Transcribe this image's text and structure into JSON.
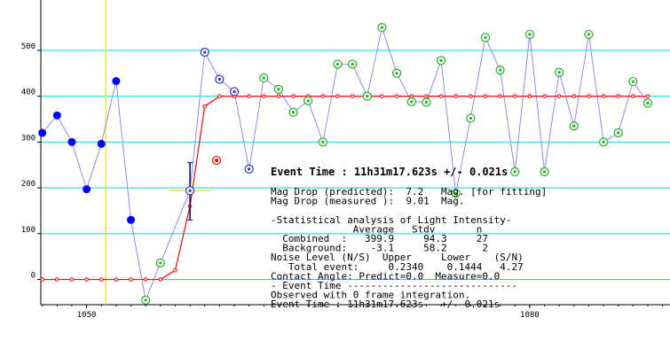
{
  "chart_data": {
    "type": "scatter",
    "title": "",
    "xlabel": "",
    "ylabel": "",
    "xlim": [
      1046.9,
      1089.5
    ],
    "ylim": [
      -55,
      610
    ],
    "x_ticks": [
      1050,
      1080
    ],
    "y_ticks": [
      0,
      100,
      200,
      300,
      400,
      500
    ],
    "grid": "horizontal",
    "event_marker_x": 1051.3,
    "series": [
      {
        "style": "before-event",
        "color": "#0000ff",
        "points": [
          [
            1047.0,
            320
          ],
          [
            1048.0,
            358
          ],
          [
            1049.0,
            300
          ],
          [
            1050.0,
            197
          ],
          [
            1051.0,
            296
          ],
          [
            1052.0,
            433
          ],
          [
            1053.0,
            130
          ]
        ]
      },
      {
        "style": "event-transition",
        "color": "#0000ff",
        "points": [
          [
            1057.0,
            194
          ],
          [
            1058.0,
            496
          ],
          [
            1059.0,
            437
          ],
          [
            1060.0,
            410
          ],
          [
            1061.0,
            241
          ]
        ]
      },
      {
        "style": "after-event",
        "color": "#00a000",
        "points": [
          [
            1054.0,
            -45
          ],
          [
            1055.0,
            36
          ],
          [
            1062.0,
            440
          ],
          [
            1063.0,
            415
          ],
          [
            1064.0,
            365
          ],
          [
            1065.0,
            390
          ],
          [
            1066.0,
            300
          ],
          [
            1067.0,
            470
          ],
          [
            1068.0,
            470
          ],
          [
            1069.0,
            400
          ],
          [
            1070.0,
            550
          ],
          [
            1071.0,
            450
          ],
          [
            1072.0,
            388
          ],
          [
            1073.0,
            387
          ],
          [
            1074.0,
            478
          ],
          [
            1075.0,
            188
          ],
          [
            1076.0,
            352
          ],
          [
            1077.0,
            528
          ],
          [
            1078.0,
            457
          ],
          [
            1079.0,
            235
          ],
          [
            1080.0,
            535
          ],
          [
            1081.0,
            235
          ],
          [
            1082.0,
            452
          ],
          [
            1083.0,
            335
          ],
          [
            1084.0,
            535
          ],
          [
            1085.0,
            300
          ],
          [
            1086.0,
            320
          ],
          [
            1087.0,
            432
          ],
          [
            1088.0,
            385
          ]
        ]
      },
      {
        "style": "model-fit",
        "color": "#ff0000",
        "points": [
          [
            1047.0,
            0
          ],
          [
            1048.0,
            0
          ],
          [
            1049.0,
            0
          ],
          [
            1050.0,
            0
          ],
          [
            1051.0,
            0
          ],
          [
            1052.0,
            0
          ],
          [
            1053.0,
            0
          ],
          [
            1054.0,
            0
          ],
          [
            1055.0,
            0
          ],
          [
            1056.0,
            20
          ],
          [
            1057.0,
            160
          ],
          [
            1058.0,
            378
          ],
          [
            1059.0,
            400
          ],
          [
            1060.0,
            400
          ],
          [
            1061.0,
            400
          ],
          [
            1062.0,
            400
          ],
          [
            1063.0,
            400
          ],
          [
            1064.0,
            400
          ],
          [
            1065.0,
            400
          ],
          [
            1066.0,
            400
          ],
          [
            1067.0,
            400
          ],
          [
            1068.0,
            400
          ],
          [
            1069.0,
            400
          ],
          [
            1070.0,
            400
          ],
          [
            1071.0,
            400
          ],
          [
            1072.0,
            400
          ],
          [
            1073.0,
            400
          ],
          [
            1074.0,
            400
          ],
          [
            1075.0,
            400
          ],
          [
            1076.0,
            400
          ],
          [
            1077.0,
            400
          ],
          [
            1078.0,
            400
          ],
          [
            1079.0,
            400
          ],
          [
            1080.0,
            400
          ],
          [
            1081.0,
            400
          ],
          [
            1082.0,
            400
          ],
          [
            1083.0,
            400
          ],
          [
            1084.0,
            400
          ],
          [
            1085.0,
            400
          ],
          [
            1086.0,
            400
          ],
          [
            1087.0,
            400
          ],
          [
            1088.0,
            400
          ]
        ],
        "event_point": [
          1058.8,
          260
        ],
        "event_error_y": [
          1057.0,
          130,
          255
        ]
      }
    ]
  },
  "info_panel": {
    "event_time_heading": "Event Time : 11h31m17.623s  +/- 0.021s",
    "lines": [
      "Mag Drop (predicted):  7.2   Mag. [for fitting]",
      "Mag Drop (measured ):  9.01  Mag.",
      "",
      "-Statistical analysis of Light Intensity-",
      "              Average   Stdv       n",
      "  Combined  :   399.9     94.3     27",
      "  Background:    -3.1     58.2      2",
      "Noise Level (N/S)  Upper     Lower    (S/N)",
      "   Total event:     0.2340    0.1444   4.27",
      "Contact Angle: Predict=0.0  Measure=0.0",
      "- Event Time -----------------------------",
      "Observed with 0 frame integration.",
      "Event Time : 11h31m17.623s   +/- 0.021s"
    ]
  }
}
